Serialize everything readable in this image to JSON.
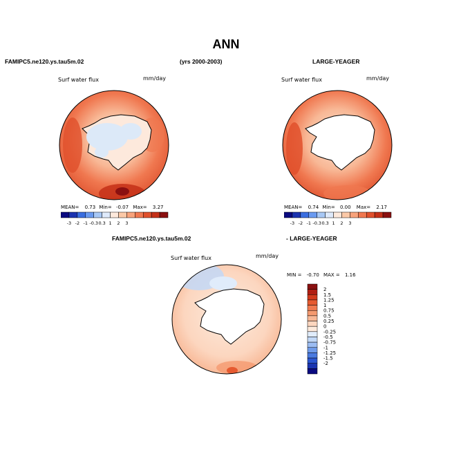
{
  "figure": {
    "title": "ANN",
    "left_header": "FAMIPC5.ne120.ys.tau5m.02",
    "center_header": "(yrs 2000-2003)",
    "right_header": "LARGE-YEAGER",
    "diff_header_left": "FAMIPC5.ne120.ys.tau5m.02",
    "diff_header_right": "- LARGE-YEAGER"
  },
  "panels": {
    "p1": {
      "variable": "Surf water flux",
      "units": "mm/day",
      "mean_label": "MEAN=",
      "mean": "0.73",
      "min_label": "Min=",
      "min": "-0.07",
      "max_label": "Max=",
      "max": "3.27"
    },
    "p2": {
      "variable": "Surf water flux",
      "units": "mm/day",
      "mean_label": "MEAN=",
      "mean": "0.74",
      "min_label": "Min=",
      "min": "0.00",
      "max_label": "Max=",
      "max": "2.17"
    },
    "p3": {
      "variable": "Surf water flux",
      "units": "mm/day",
      "min_label": "MIN =",
      "min": "-0.70",
      "max_label": "MAX =",
      "max": "1.16"
    }
  },
  "chart_data": [
    {
      "type": "heatmap",
      "projection": "south-polar-stereographic",
      "title": "Surf water flux",
      "units": "mm/day",
      "source": "FAMIPC5.ne120.ys.tau5m.02",
      "stats": {
        "mean": 0.73,
        "min": -0.07,
        "max": 3.27
      },
      "colorbar_ticks": [
        "-3",
        "-2",
        "-1",
        "-0.3",
        "0.3",
        "1",
        "2",
        "3"
      ],
      "colorbar_colors": [
        "#0a0a80",
        "#1b33b0",
        "#3a6ee0",
        "#6a9af0",
        "#a8c8f5",
        "#dfeafb",
        "#fde9dc",
        "#fbc9a8",
        "#f8a37c",
        "#f07850",
        "#e0502c",
        "#c43018",
        "#8a1010"
      ]
    },
    {
      "type": "heatmap",
      "projection": "south-polar-stereographic",
      "title": "Surf water flux",
      "units": "mm/day",
      "source": "LARGE-YEAGER",
      "stats": {
        "mean": 0.74,
        "min": 0.0,
        "max": 2.17
      },
      "colorbar_ticks": [
        "-3",
        "-2",
        "-1",
        "-0.3",
        "0.3",
        "1",
        "2",
        "3"
      ],
      "colorbar_colors": [
        "#0a0a80",
        "#1b33b0",
        "#3a6ee0",
        "#6a9af0",
        "#a8c8f5",
        "#dfeafb",
        "#fde9dc",
        "#fbc9a8",
        "#f8a37c",
        "#f07850",
        "#e0502c",
        "#c43018",
        "#8a1010"
      ]
    },
    {
      "type": "heatmap",
      "projection": "south-polar-stereographic",
      "title": "Surf water flux",
      "units": "mm/day",
      "source": "FAMIPC5.ne120.ys.tau5m.02 - LARGE-YEAGER",
      "stats": {
        "min": -0.7,
        "max": 1.16
      },
      "colorbar_ticks": [
        "2",
        "1.5",
        "1.25",
        "1",
        "0.75",
        "0.5",
        "0.25",
        "0",
        "-0.25",
        "-0.5",
        "-0.75",
        "-1",
        "-1.25",
        "-1.5",
        "-2"
      ],
      "colorbar_colors": [
        "#8a1010",
        "#b01e12",
        "#d23a1c",
        "#e65a30",
        "#f07a50",
        "#f59a70",
        "#f8b896",
        "#fcd6bf",
        "#fdeadc",
        "#e0ecfb",
        "#c2d8f7",
        "#9cbdf3",
        "#6f9bea",
        "#4a7ae0",
        "#2a55d0",
        "#1a34b0",
        "#0a0a80"
      ]
    }
  ]
}
